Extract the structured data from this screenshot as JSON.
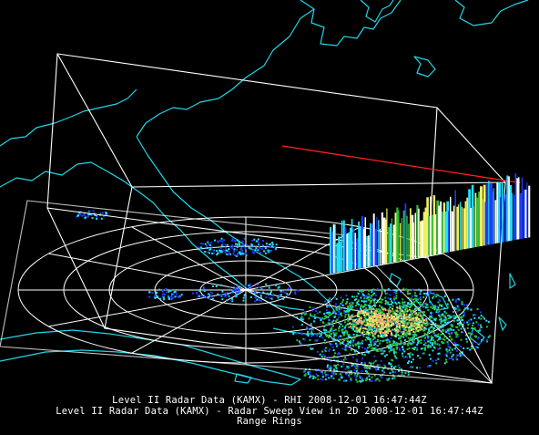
{
  "window": {
    "view_title": "Level II Radar Data (KAMX) - Radar Sweep View in 2D"
  },
  "captions": {
    "line1": "Level II Radar Data (KAMX) - RHI 2008-12-01 16:47:44Z",
    "line2": "Level II Radar Data (KAMX) - Radar Sweep View in 2D 2008-12-01 16:47:44Z",
    "line3": "Range Rings"
  },
  "colors": {
    "background": "#000000",
    "coastline": "#1fd7e6",
    "box": "#ffffff",
    "range_rings": "#ffffff",
    "rhi_line": "#ff2020",
    "reflectivity_low": "#1f3cff",
    "reflectivity_mid": "#20e0ff",
    "reflectivity_green": "#2fbf3a",
    "reflectivity_yellow": "#f0f060",
    "reflectivity_high": "#f0a878"
  },
  "layers": [
    "coastline-map",
    "display-box",
    "range-rings",
    "radar-sweep",
    "rhi-cross-section"
  ]
}
